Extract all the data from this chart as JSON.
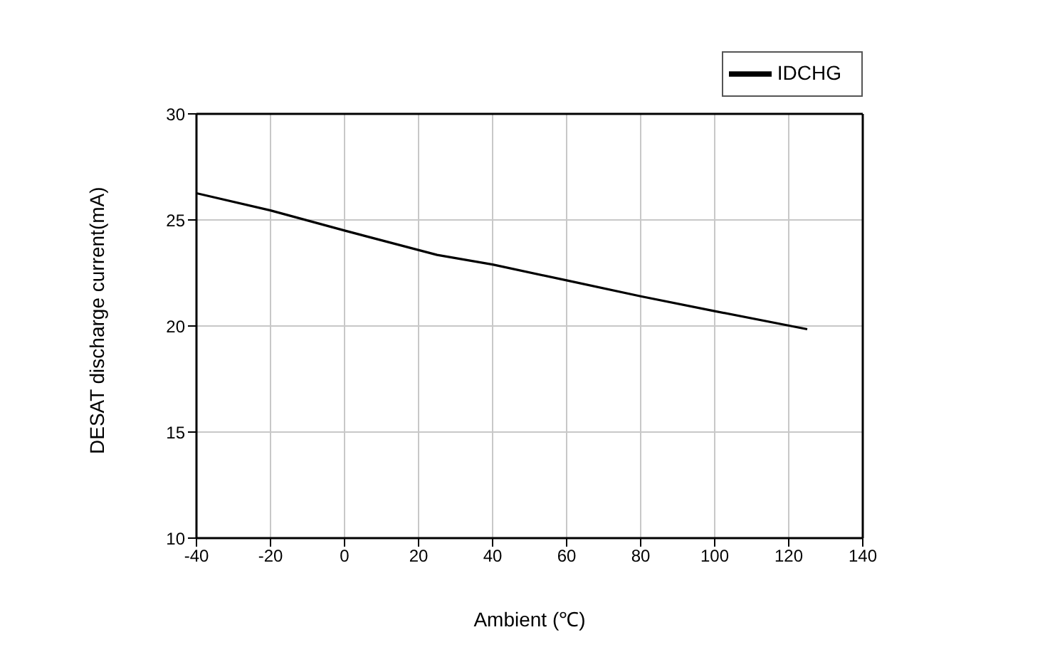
{
  "chart_data": {
    "type": "line",
    "xlabel": "Ambient (℃)",
    "ylabel": "DESAT discharge current(mA)",
    "x": [
      -40,
      -20,
      0,
      25,
      40,
      60,
      80,
      100,
      125
    ],
    "series": [
      {
        "name": "IDCHG",
        "color": "#000000",
        "values": [
          26.26,
          25.45,
          24.5,
          23.35,
          22.9,
          22.15,
          21.4,
          20.7,
          19.85
        ]
      }
    ],
    "xlim": [
      -40,
      140
    ],
    "xticks": [
      -40,
      -20,
      0,
      20,
      40,
      60,
      80,
      100,
      120,
      140
    ],
    "ylim": [
      10,
      30
    ],
    "yticks": [
      10,
      15,
      20,
      25,
      30
    ],
    "grid": true,
    "legend": "top right",
    "marker": "none",
    "line_style": "solid"
  }
}
